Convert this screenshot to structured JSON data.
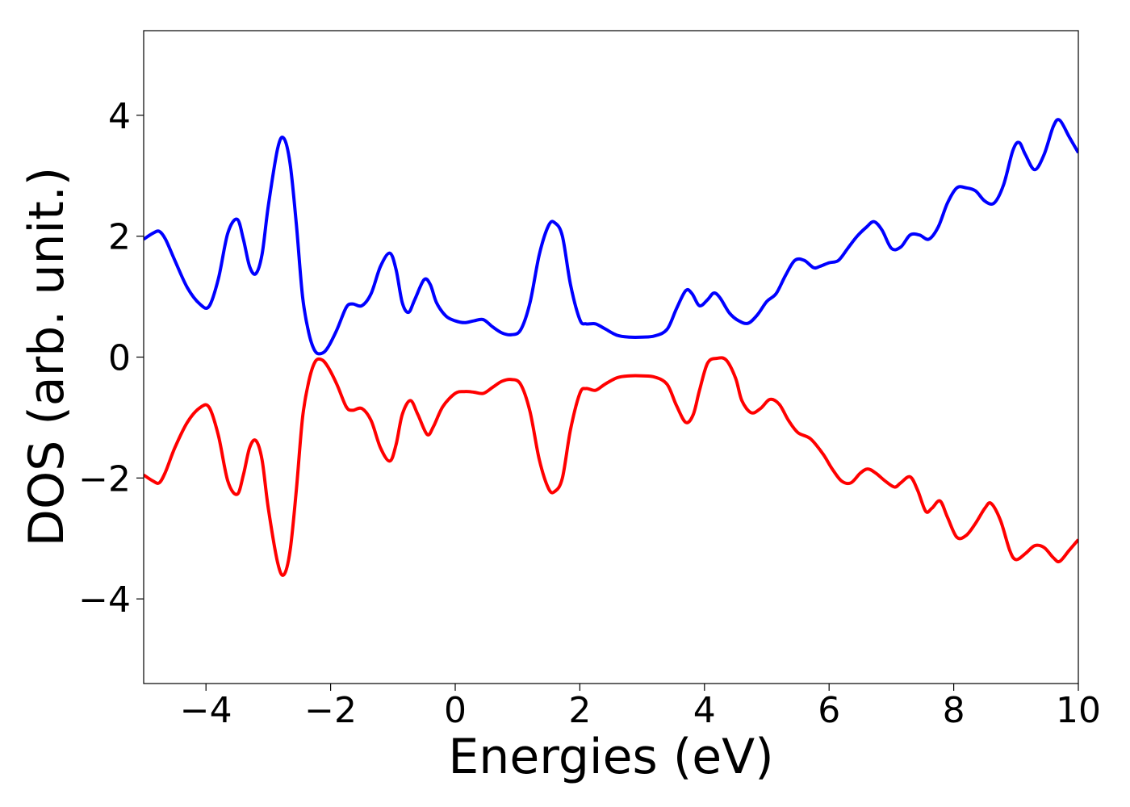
{
  "chart_data": {
    "type": "line",
    "title": "",
    "xlabel": "Energies (eV)",
    "ylabel": "DOS (arb. unit.)",
    "xlim": [
      -5,
      10
    ],
    "ylim": [
      -5.4,
      5.4
    ],
    "grid": false,
    "legend": "none",
    "x_ticks": [
      -4,
      -2,
      0,
      2,
      4,
      6,
      8,
      10
    ],
    "y_ticks": [
      -4,
      -2,
      0,
      2,
      4
    ],
    "x_tick_labels": [
      "−4",
      "−2",
      "0",
      "2",
      "4",
      "6",
      "8",
      "10"
    ],
    "y_tick_labels": [
      "−4",
      "−2",
      "0",
      "2",
      "4"
    ],
    "series": [
      {
        "color": "#0000ff",
        "points": [
          [
            -5.0,
            1.95
          ],
          [
            -4.85,
            2.05
          ],
          [
            -4.75,
            2.08
          ],
          [
            -4.65,
            1.95
          ],
          [
            -4.5,
            1.6
          ],
          [
            -4.3,
            1.15
          ],
          [
            -4.1,
            0.88
          ],
          [
            -3.95,
            0.84
          ],
          [
            -3.8,
            1.3
          ],
          [
            -3.65,
            2.05
          ],
          [
            -3.5,
            2.28
          ],
          [
            -3.4,
            1.95
          ],
          [
            -3.3,
            1.5
          ],
          [
            -3.2,
            1.38
          ],
          [
            -3.1,
            1.7
          ],
          [
            -3.0,
            2.5
          ],
          [
            -2.85,
            3.45
          ],
          [
            -2.75,
            3.62
          ],
          [
            -2.65,
            3.2
          ],
          [
            -2.55,
            2.2
          ],
          [
            -2.45,
            1.0
          ],
          [
            -2.35,
            0.4
          ],
          [
            -2.25,
            0.1
          ],
          [
            -2.15,
            0.06
          ],
          [
            -2.05,
            0.15
          ],
          [
            -1.9,
            0.45
          ],
          [
            -1.75,
            0.82
          ],
          [
            -1.65,
            0.88
          ],
          [
            -1.5,
            0.85
          ],
          [
            -1.35,
            1.05
          ],
          [
            -1.2,
            1.5
          ],
          [
            -1.05,
            1.72
          ],
          [
            -0.95,
            1.45
          ],
          [
            -0.85,
            0.9
          ],
          [
            -0.75,
            0.74
          ],
          [
            -0.65,
            0.95
          ],
          [
            -0.5,
            1.28
          ],
          [
            -0.4,
            1.2
          ],
          [
            -0.3,
            0.9
          ],
          [
            -0.15,
            0.68
          ],
          [
            0.0,
            0.6
          ],
          [
            0.15,
            0.57
          ],
          [
            0.3,
            0.6
          ],
          [
            0.45,
            0.62
          ],
          [
            0.6,
            0.5
          ],
          [
            0.75,
            0.4
          ],
          [
            0.9,
            0.37
          ],
          [
            1.05,
            0.45
          ],
          [
            1.2,
            0.9
          ],
          [
            1.35,
            1.7
          ],
          [
            1.5,
            2.18
          ],
          [
            1.6,
            2.22
          ],
          [
            1.72,
            2.0
          ],
          [
            1.85,
            1.2
          ],
          [
            2.0,
            0.62
          ],
          [
            2.1,
            0.55
          ],
          [
            2.25,
            0.55
          ],
          [
            2.4,
            0.47
          ],
          [
            2.6,
            0.36
          ],
          [
            2.8,
            0.33
          ],
          [
            3.0,
            0.33
          ],
          [
            3.2,
            0.35
          ],
          [
            3.4,
            0.46
          ],
          [
            3.55,
            0.8
          ],
          [
            3.7,
            1.1
          ],
          [
            3.8,
            1.05
          ],
          [
            3.92,
            0.85
          ],
          [
            4.05,
            0.95
          ],
          [
            4.15,
            1.06
          ],
          [
            4.25,
            0.98
          ],
          [
            4.4,
            0.73
          ],
          [
            4.55,
            0.6
          ],
          [
            4.7,
            0.56
          ],
          [
            4.85,
            0.7
          ],
          [
            5.0,
            0.92
          ],
          [
            5.15,
            1.05
          ],
          [
            5.3,
            1.35
          ],
          [
            5.45,
            1.6
          ],
          [
            5.6,
            1.6
          ],
          [
            5.75,
            1.48
          ],
          [
            5.85,
            1.5
          ],
          [
            6.0,
            1.56
          ],
          [
            6.15,
            1.6
          ],
          [
            6.3,
            1.8
          ],
          [
            6.45,
            2.0
          ],
          [
            6.6,
            2.15
          ],
          [
            6.72,
            2.24
          ],
          [
            6.85,
            2.1
          ],
          [
            7.0,
            1.8
          ],
          [
            7.15,
            1.82
          ],
          [
            7.3,
            2.02
          ],
          [
            7.45,
            2.02
          ],
          [
            7.6,
            1.95
          ],
          [
            7.75,
            2.15
          ],
          [
            7.9,
            2.55
          ],
          [
            8.05,
            2.8
          ],
          [
            8.2,
            2.8
          ],
          [
            8.35,
            2.75
          ],
          [
            8.5,
            2.58
          ],
          [
            8.65,
            2.55
          ],
          [
            8.8,
            2.85
          ],
          [
            8.95,
            3.42
          ],
          [
            9.05,
            3.55
          ],
          [
            9.15,
            3.35
          ],
          [
            9.3,
            3.1
          ],
          [
            9.45,
            3.35
          ],
          [
            9.6,
            3.82
          ],
          [
            9.7,
            3.92
          ],
          [
            9.85,
            3.65
          ],
          [
            10.0,
            3.38
          ]
        ]
      },
      {
        "color": "#ff0000",
        "points": [
          [
            -5.0,
            -1.95
          ],
          [
            -4.85,
            -2.05
          ],
          [
            -4.75,
            -2.08
          ],
          [
            -4.65,
            -1.9
          ],
          [
            -4.5,
            -1.5
          ],
          [
            -4.3,
            -1.08
          ],
          [
            -4.1,
            -0.84
          ],
          [
            -3.95,
            -0.83
          ],
          [
            -3.8,
            -1.3
          ],
          [
            -3.65,
            -2.05
          ],
          [
            -3.5,
            -2.27
          ],
          [
            -3.4,
            -1.95
          ],
          [
            -3.3,
            -1.5
          ],
          [
            -3.2,
            -1.38
          ],
          [
            -3.1,
            -1.7
          ],
          [
            -3.0,
            -2.5
          ],
          [
            -2.85,
            -3.4
          ],
          [
            -2.75,
            -3.6
          ],
          [
            -2.65,
            -3.2
          ],
          [
            -2.55,
            -2.2
          ],
          [
            -2.45,
            -1.0
          ],
          [
            -2.35,
            -0.4
          ],
          [
            -2.25,
            -0.08
          ],
          [
            -2.15,
            -0.04
          ],
          [
            -2.05,
            -0.15
          ],
          [
            -1.9,
            -0.45
          ],
          [
            -1.75,
            -0.82
          ],
          [
            -1.65,
            -0.88
          ],
          [
            -1.5,
            -0.85
          ],
          [
            -1.35,
            -1.05
          ],
          [
            -1.2,
            -1.5
          ],
          [
            -1.05,
            -1.72
          ],
          [
            -0.95,
            -1.45
          ],
          [
            -0.85,
            -0.95
          ],
          [
            -0.72,
            -0.72
          ],
          [
            -0.6,
            -0.95
          ],
          [
            -0.45,
            -1.28
          ],
          [
            -0.35,
            -1.15
          ],
          [
            -0.2,
            -0.82
          ],
          [
            0.0,
            -0.6
          ],
          [
            0.15,
            -0.57
          ],
          [
            0.3,
            -0.58
          ],
          [
            0.45,
            -0.6
          ],
          [
            0.6,
            -0.5
          ],
          [
            0.75,
            -0.4
          ],
          [
            0.9,
            -0.37
          ],
          [
            1.05,
            -0.45
          ],
          [
            1.2,
            -0.9
          ],
          [
            1.35,
            -1.7
          ],
          [
            1.5,
            -2.18
          ],
          [
            1.6,
            -2.22
          ],
          [
            1.72,
            -2.0
          ],
          [
            1.85,
            -1.2
          ],
          [
            2.0,
            -0.6
          ],
          [
            2.1,
            -0.52
          ],
          [
            2.25,
            -0.55
          ],
          [
            2.4,
            -0.45
          ],
          [
            2.6,
            -0.34
          ],
          [
            2.8,
            -0.31
          ],
          [
            3.0,
            -0.31
          ],
          [
            3.2,
            -0.33
          ],
          [
            3.4,
            -0.45
          ],
          [
            3.55,
            -0.8
          ],
          [
            3.7,
            -1.08
          ],
          [
            3.82,
            -0.95
          ],
          [
            3.92,
            -0.55
          ],
          [
            4.05,
            -0.1
          ],
          [
            4.2,
            -0.02
          ],
          [
            4.35,
            -0.05
          ],
          [
            4.5,
            -0.35
          ],
          [
            4.6,
            -0.72
          ],
          [
            4.75,
            -0.92
          ],
          [
            4.9,
            -0.85
          ],
          [
            5.05,
            -0.7
          ],
          [
            5.2,
            -0.78
          ],
          [
            5.35,
            -1.05
          ],
          [
            5.5,
            -1.25
          ],
          [
            5.7,
            -1.35
          ],
          [
            5.9,
            -1.6
          ],
          [
            6.05,
            -1.85
          ],
          [
            6.2,
            -2.05
          ],
          [
            6.35,
            -2.08
          ],
          [
            6.5,
            -1.92
          ],
          [
            6.62,
            -1.85
          ],
          [
            6.75,
            -1.92
          ],
          [
            6.9,
            -2.05
          ],
          [
            7.05,
            -2.15
          ],
          [
            7.15,
            -2.08
          ],
          [
            7.3,
            -1.98
          ],
          [
            7.42,
            -2.2
          ],
          [
            7.55,
            -2.55
          ],
          [
            7.65,
            -2.5
          ],
          [
            7.78,
            -2.38
          ],
          [
            7.9,
            -2.65
          ],
          [
            8.05,
            -2.98
          ],
          [
            8.2,
            -2.95
          ],
          [
            8.35,
            -2.75
          ],
          [
            8.5,
            -2.5
          ],
          [
            8.6,
            -2.42
          ],
          [
            8.75,
            -2.7
          ],
          [
            8.9,
            -3.2
          ],
          [
            9.0,
            -3.35
          ],
          [
            9.15,
            -3.25
          ],
          [
            9.3,
            -3.12
          ],
          [
            9.45,
            -3.15
          ],
          [
            9.6,
            -3.32
          ],
          [
            9.7,
            -3.38
          ],
          [
            9.85,
            -3.2
          ],
          [
            10.0,
            -3.02
          ]
        ]
      }
    ]
  }
}
